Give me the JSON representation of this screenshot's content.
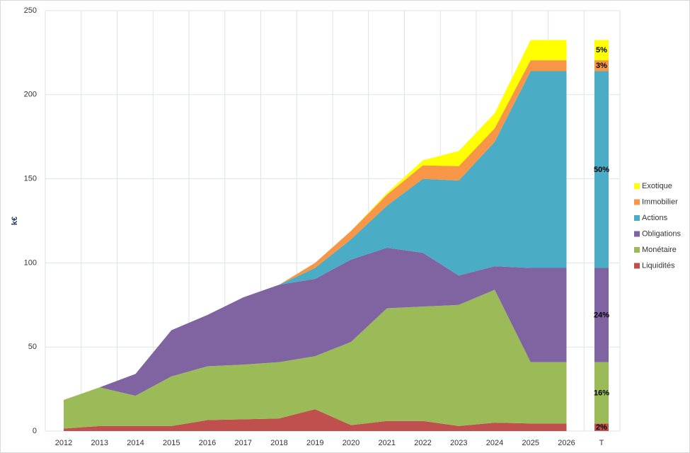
{
  "chart_data": {
    "type": "area",
    "stacked": true,
    "ylabel": "k€",
    "ylim": [
      0,
      250
    ],
    "yticks": [
      0,
      50,
      100,
      150,
      200,
      250
    ],
    "categories": [
      "2012",
      "2013",
      "2014",
      "2015",
      "2016",
      "2017",
      "2018",
      "2019",
      "2020",
      "2021",
      "2022",
      "2023",
      "2024",
      "2025",
      "2026"
    ],
    "grid": true,
    "legend_position": "right",
    "series": [
      {
        "name": "Liquidités",
        "color": "#c0504d",
        "values": [
          1.5,
          3,
          3,
          3,
          6.5,
          7,
          7.5,
          13,
          3.5,
          6,
          6,
          3,
          5,
          4.5,
          4.5
        ]
      },
      {
        "name": "Monétaire",
        "color": "#9bbb59",
        "values": [
          17,
          23,
          18,
          29.5,
          32,
          32.5,
          33.5,
          31.5,
          49.5,
          67,
          68,
          72,
          79,
          36.5,
          36.5
        ]
      },
      {
        "name": "Obligations",
        "color": "#8064a2",
        "values": [
          0,
          0,
          13,
          27.5,
          30.5,
          40,
          46,
          46,
          49,
          36,
          32,
          17.5,
          14,
          56,
          56
        ]
      },
      {
        "name": "Actions",
        "color": "#4bacc6",
        "values": [
          0,
          0,
          0,
          0,
          0,
          0,
          0,
          6.5,
          12,
          25,
          44,
          56.5,
          74,
          117,
          117
        ]
      },
      {
        "name": "Immobilier",
        "color": "#f79646",
        "values": [
          0,
          0,
          0,
          0,
          0,
          0,
          0,
          3,
          5,
          6.5,
          8,
          8.5,
          8,
          6.5,
          6.5
        ]
      },
      {
        "name": "Exotique",
        "color": "#ffff00",
        "values": [
          0,
          0,
          0,
          0,
          0,
          0,
          0,
          0,
          0,
          1,
          3,
          9,
          9,
          12,
          12
        ]
      }
    ],
    "total_bar": {
      "category": "T",
      "values": [
        4.5,
        36.5,
        56,
        117,
        6.5,
        12
      ],
      "labels": [
        "2%",
        "16%",
        "24%",
        "50%",
        "3%",
        "5%"
      ]
    }
  }
}
